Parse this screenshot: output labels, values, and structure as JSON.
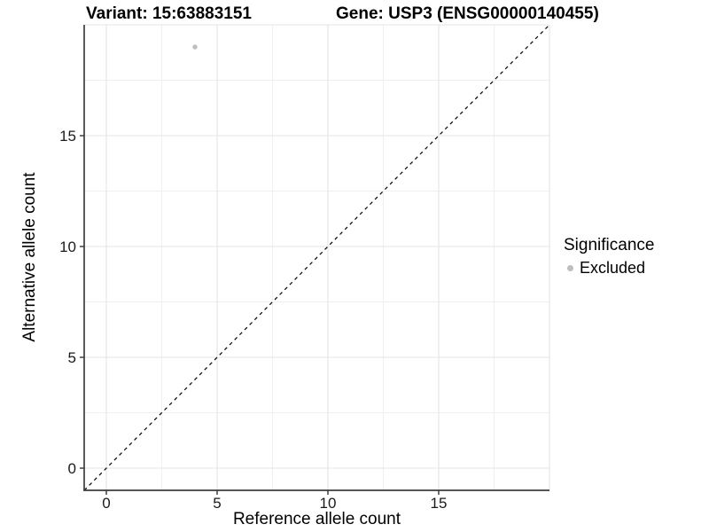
{
  "chart_data": {
    "type": "scatter",
    "title_left": "Variant: 15:63883151",
    "title_right": "Gene: USP3 (ENSG00000140455)",
    "xlabel": "Reference allele count",
    "ylabel": "Alternative allele count",
    "xlim": [
      -1,
      20
    ],
    "ylim": [
      -1,
      20
    ],
    "xticks": [
      0,
      5,
      10,
      15
    ],
    "yticks": [
      0,
      5,
      10,
      15
    ],
    "x_major_gridlines": [
      0,
      5,
      10,
      15,
      20
    ],
    "y_major_gridlines": [
      0,
      5,
      10,
      15,
      20
    ],
    "x_minor_gridlines": [
      2.5,
      7.5,
      12.5,
      17.5
    ],
    "y_minor_gridlines": [
      2.5,
      7.5,
      12.5,
      17.5
    ],
    "grid": true,
    "points": [
      {
        "x": 4,
        "y": 19,
        "significance": "Excluded"
      }
    ],
    "identity_line": {
      "slope": 1,
      "intercept": 0,
      "style": "dashed"
    },
    "legend": {
      "title": "Significance",
      "position": "right",
      "items": [
        {
          "label": "Excluded",
          "color": "#bebebe"
        }
      ]
    },
    "colors": {
      "point": "#bebebe",
      "grid_major": "#e4e4e4",
      "grid_minor": "#efefef",
      "axis_line": "#3d3d3d",
      "tick_mark": "#333333",
      "tick_text": "#1a1a1a",
      "identity_line": "#000000",
      "background": "#ffffff"
    }
  }
}
